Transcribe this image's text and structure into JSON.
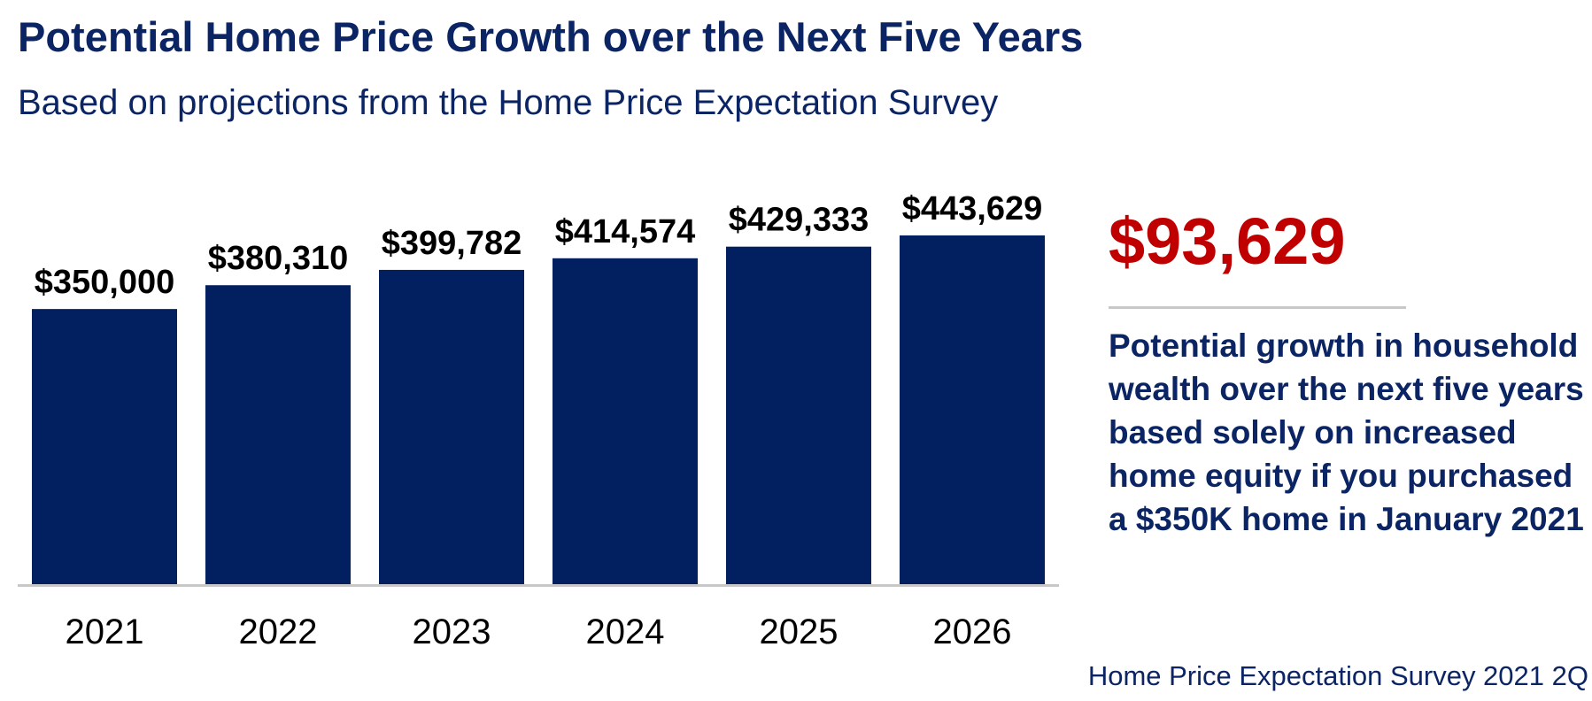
{
  "header": {
    "title": "Potential Home Price Growth over the Next Five Years",
    "subtitle": "Based on projections from the Home Price Expectation Survey"
  },
  "callout": {
    "value": "$93,629",
    "description": "Potential growth in household wealth over the next five years based solely on increased home equity if you purchased a $350K home in January 2021"
  },
  "footer": {
    "source": "Home Price Expectation Survey 2021 2Q"
  },
  "colors": {
    "bar": "#022060",
    "title": "#0b2463",
    "accent": "#c00000",
    "axis": "#c8c8c8"
  },
  "chart_data": {
    "type": "bar",
    "title": "Potential Home Price Growth over the Next Five Years",
    "subtitle": "Based on projections from the Home Price Expectation Survey",
    "xlabel": "",
    "ylabel": "",
    "categories": [
      "2021",
      "2022",
      "2023",
      "2024",
      "2025",
      "2026"
    ],
    "values": [
      350000,
      380310,
      399782,
      414574,
      429333,
      443629
    ],
    "data_labels": [
      "$350,000",
      "$380,310",
      "$399,782",
      "$414,574",
      "$429,333",
      "$443,629"
    ],
    "ylim": [
      0,
      456000
    ],
    "grid": false,
    "legend": "none"
  }
}
